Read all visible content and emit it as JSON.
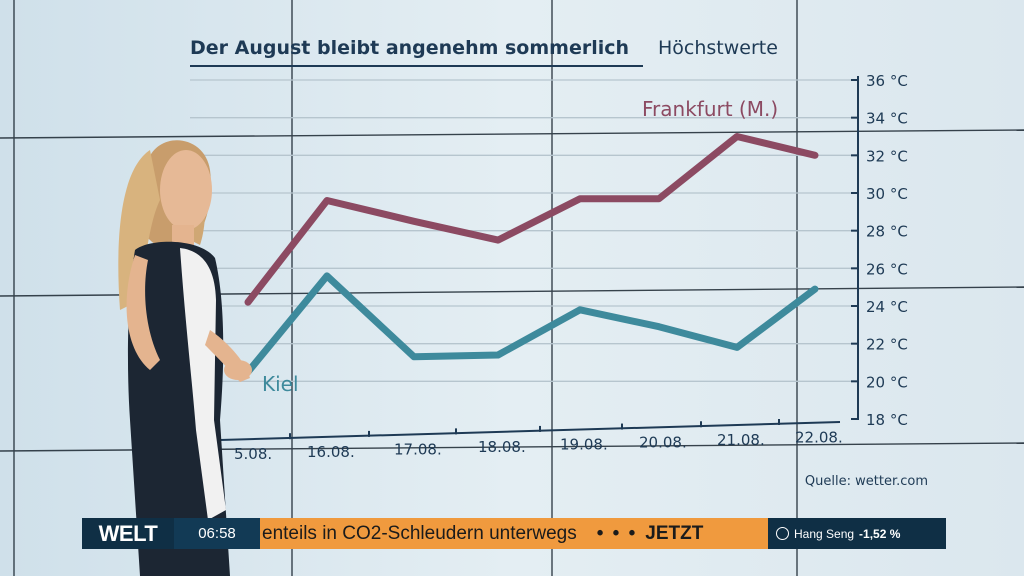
{
  "chart_data": {
    "type": "line",
    "title": "Der August bleibt angenehm sommerlich",
    "subtitle": "Höchstwerte",
    "source": "Quelle: wetter.com",
    "categories": [
      "15.08.",
      "16.08.",
      "17.08.",
      "18.08.",
      "19.08.",
      "20.08.",
      "21.08.",
      "22.08."
    ],
    "categories_visible": [
      "5.08.",
      "16.08.",
      "17.08.",
      "18.08.",
      "19.08.",
      "20.08.",
      "21.08.",
      "22.08."
    ],
    "y_ticks": [
      "36 °C",
      "34 °C",
      "32 °C",
      "30 °C",
      "28 °C",
      "26 °C",
      "24 °C",
      "22 °C",
      "20 °C",
      "18 °C"
    ],
    "ylim": [
      18,
      36
    ],
    "unit": "°C",
    "grid": true,
    "series": [
      {
        "name": "Frankfurt (M.)",
        "color": "#8c4a62",
        "values": [
          24.2,
          29.6,
          28.5,
          27.5,
          29.7,
          29.7,
          33.0,
          32.0
        ]
      },
      {
        "name": "Kiel",
        "color": "#3e8a9c",
        "values": [
          20.5,
          25.6,
          21.3,
          21.4,
          23.8,
          22.9,
          21.8,
          24.9
        ]
      }
    ]
  },
  "ticker": {
    "logo": "WELT",
    "time": "06:58",
    "headline": "enteils in CO2-Schleudern unterwegs",
    "separator": "• • •",
    "live": "JETZT",
    "market_name": "Hang Seng",
    "market_change": "-1,52 %"
  },
  "colors": {
    "accent_orange": "#f09a3e",
    "navy": "#0f2f45"
  }
}
